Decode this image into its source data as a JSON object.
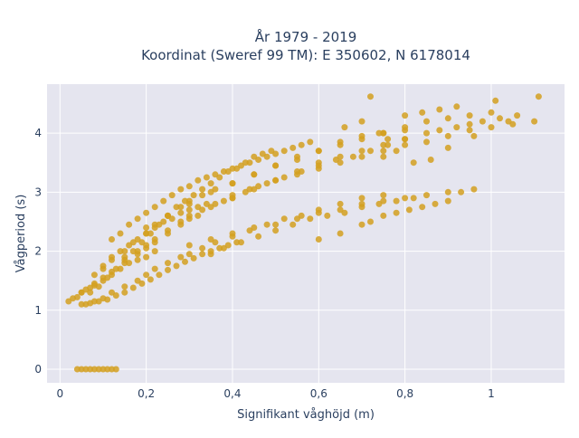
{
  "chart_data": {
    "type": "scatter",
    "title_line1": "År 1979 - 2019",
    "title_line2": "Koordinat (Sweref 99 TM): E 350602, N 6178014",
    "xlabel": "Signifikant våghöjd (m)",
    "ylabel": "Vågperiod (s)",
    "xlim": [
      -0.03,
      1.17
    ],
    "ylim": [
      -0.23,
      4.83
    ],
    "xticks": [
      {
        "value": 0,
        "label": "0"
      },
      {
        "value": 0.2,
        "label": "0,2"
      },
      {
        "value": 0.4,
        "label": "0,4"
      },
      {
        "value": 0.6,
        "label": "0,6"
      },
      {
        "value": 0.8,
        "label": "0,8"
      },
      {
        "value": 1,
        "label": "1"
      }
    ],
    "yticks": [
      {
        "value": 0,
        "label": "0"
      },
      {
        "value": 1,
        "label": "1"
      },
      {
        "value": 2,
        "label": "2"
      },
      {
        "value": 3,
        "label": "3"
      },
      {
        "value": 4,
        "label": "4"
      }
    ],
    "grid": true,
    "legend": "none",
    "marker_color": "#d4a020",
    "plot_background": "#e5e5ef",
    "series": [
      {
        "x": [
          0.04,
          0.05,
          0.06,
          0.07,
          0.08,
          0.09,
          0.1,
          0.11,
          0.12,
          0.13,
          0.02,
          0.03,
          0.04,
          0.05,
          0.06,
          0.07,
          0.08,
          0.1,
          0.12,
          0.14,
          0.16,
          0.18,
          0.2,
          0.22,
          0.05,
          0.08,
          0.1,
          0.12,
          0.15,
          0.18,
          0.2,
          0.22,
          0.25,
          0.28,
          0.3,
          0.32,
          0.35,
          0.38,
          0.4,
          0.43,
          0.46,
          0.5,
          0.55,
          0.6,
          0.65,
          0.7,
          0.75,
          0.8,
          0.85,
          0.9,
          0.95,
          1.0,
          1.05,
          1.1,
          0.1,
          0.12,
          0.15,
          0.17,
          0.2,
          0.22,
          0.25,
          0.28,
          0.3,
          0.33,
          0.36,
          0.4,
          0.45,
          0.5,
          0.55,
          0.6,
          0.65,
          0.7,
          0.75,
          0.8,
          0.06,
          0.08,
          0.1,
          0.12,
          0.15,
          0.18,
          0.2,
          0.22,
          0.25,
          0.28,
          0.3,
          0.33,
          0.36,
          0.4,
          0.44,
          0.48,
          0.52,
          0.56,
          0.6,
          0.65,
          0.7,
          0.75,
          0.15,
          0.18,
          0.2,
          0.22,
          0.25,
          0.28,
          0.3,
          0.33,
          0.36,
          0.4,
          0.44,
          0.48,
          0.52,
          0.56,
          0.6,
          0.64,
          0.68,
          0.72,
          0.76,
          0.8,
          0.05,
          0.07,
          0.09,
          0.11,
          0.13,
          0.15,
          0.17,
          0.19,
          0.21,
          0.23,
          0.25,
          0.27,
          0.29,
          0.31,
          0.33,
          0.35,
          0.37,
          0.39,
          0.41,
          0.12,
          0.14,
          0.16,
          0.18,
          0.2,
          0.22,
          0.24,
          0.26,
          0.28,
          0.3,
          0.32,
          0.34,
          0.36,
          0.38,
          0.4,
          0.42,
          0.44,
          0.46,
          0.48,
          0.5,
          0.52,
          0.54,
          0.56,
          0.58,
          0.08,
          0.1,
          0.12,
          0.14,
          0.16,
          0.18,
          0.2,
          0.22,
          0.24,
          0.26,
          0.28,
          0.3,
          0.32,
          0.34,
          0.2,
          0.25,
          0.3,
          0.35,
          0.4,
          0.45,
          0.5,
          0.55,
          0.6,
          0.65,
          0.7,
          0.75,
          0.8,
          0.85,
          0.9,
          0.95,
          1.0,
          0.3,
          0.35,
          0.4,
          0.45,
          0.5,
          0.55,
          0.6,
          0.65,
          0.7,
          0.75,
          0.8,
          0.85,
          0.9,
          0.35,
          0.38,
          0.42,
          0.46,
          0.5,
          0.54,
          0.58,
          0.62,
          0.66,
          0.7,
          0.74,
          0.78,
          0.82,
          0.4,
          0.45,
          0.5,
          0.55,
          0.6,
          0.65,
          0.7,
          0.75,
          0.8,
          0.85,
          0.88,
          0.92,
          0.95,
          0.98,
          1.02,
          1.04,
          1.06,
          0.6,
          0.65,
          0.7,
          0.72,
          0.75,
          0.78,
          0.81,
          0.84,
          0.87,
          0.9,
          0.93,
          0.96,
          0.07,
          0.09,
          0.11,
          0.13,
          0.15,
          0.17,
          0.19,
          0.21,
          0.23,
          0.25,
          0.27,
          0.29,
          0.31,
          0.33,
          0.35,
          0.37,
          0.39,
          0.41,
          0.43,
          0.45,
          0.47,
          0.49,
          0.66,
          0.7,
          0.74,
          0.76,
          0.8,
          0.84,
          0.88,
          0.92,
          1.11,
          0.75,
          0.82,
          0.86,
          0.9,
          0.96,
          1.01,
          0.72,
          0.78
        ],
        "y": [
          0,
          0,
          0,
          0,
          0,
          0,
          0,
          0,
          0,
          0,
          1.15,
          1.2,
          1.22,
          1.3,
          1.35,
          1.38,
          1.42,
          1.5,
          1.6,
          1.7,
          1.8,
          1.85,
          1.9,
          2.0,
          1.3,
          1.45,
          1.55,
          1.65,
          1.8,
          1.95,
          2.05,
          2.15,
          2.3,
          2.45,
          2.55,
          2.6,
          2.75,
          2.85,
          2.9,
          3.0,
          3.1,
          3.2,
          3.3,
          3.4,
          3.5,
          3.6,
          3.7,
          3.8,
          3.85,
          3.95,
          4.05,
          4.1,
          4.15,
          4.2,
          1.7,
          1.85,
          2.0,
          2.15,
          2.3,
          2.45,
          2.6,
          2.75,
          2.85,
          2.95,
          3.05,
          3.15,
          3.3,
          3.45,
          3.55,
          3.7,
          3.8,
          3.9,
          4.0,
          4.05,
          1.1,
          1.15,
          1.2,
          1.3,
          1.4,
          1.5,
          1.6,
          1.7,
          1.8,
          1.9,
          1.95,
          2.05,
          2.15,
          2.25,
          2.35,
          2.45,
          2.55,
          2.6,
          2.7,
          2.8,
          2.9,
          2.95,
          1.9,
          2.0,
          2.1,
          2.2,
          2.35,
          2.5,
          2.6,
          2.7,
          2.8,
          2.95,
          3.05,
          3.15,
          3.25,
          3.35,
          3.45,
          3.55,
          3.6,
          3.7,
          3.8,
          3.9,
          1.1,
          1.12,
          1.15,
          1.18,
          1.25,
          1.3,
          1.38,
          1.45,
          1.52,
          1.6,
          1.68,
          1.75,
          1.82,
          1.88,
          1.95,
          2.0,
          2.05,
          2.1,
          2.15,
          2.2,
          2.3,
          2.45,
          2.55,
          2.65,
          2.75,
          2.85,
          2.95,
          3.05,
          3.1,
          3.2,
          3.25,
          3.3,
          3.35,
          3.4,
          3.45,
          3.5,
          3.55,
          3.6,
          3.65,
          3.7,
          3.75,
          3.8,
          3.85,
          1.6,
          1.75,
          1.9,
          2.0,
          2.1,
          2.2,
          2.3,
          2.4,
          2.5,
          2.55,
          2.65,
          2.7,
          2.75,
          2.8,
          2.4,
          2.6,
          2.8,
          3.0,
          3.15,
          3.3,
          3.45,
          3.6,
          3.7,
          3.85,
          3.95,
          4.0,
          4.1,
          4.2,
          4.25,
          4.3,
          4.35,
          2.1,
          2.2,
          2.3,
          2.4,
          2.45,
          2.55,
          2.65,
          2.7,
          2.8,
          2.85,
          2.9,
          2.95,
          3.0,
          1.95,
          2.05,
          2.15,
          2.25,
          2.35,
          2.45,
          2.55,
          2.6,
          2.65,
          2.75,
          2.8,
          2.85,
          2.9,
          2.9,
          3.05,
          3.2,
          3.35,
          3.5,
          3.6,
          3.7,
          3.8,
          3.9,
          4.0,
          4.05,
          4.1,
          4.15,
          4.2,
          4.25,
          4.2,
          4.3,
          2.2,
          2.3,
          2.45,
          2.5,
          2.6,
          2.65,
          2.7,
          2.75,
          2.8,
          2.85,
          3.0,
          3.05,
          1.3,
          1.4,
          1.55,
          1.7,
          1.85,
          2.0,
          2.15,
          2.3,
          2.45,
          2.6,
          2.75,
          2.85,
          2.95,
          3.05,
          3.15,
          3.25,
          3.35,
          3.4,
          3.5,
          3.6,
          3.65,
          3.7,
          4.1,
          4.2,
          4.0,
          3.9,
          4.3,
          4.35,
          4.4,
          4.45,
          4.62,
          3.6,
          3.5,
          3.55,
          3.75,
          3.95,
          4.55,
          4.62,
          3.7
        ]
      }
    ]
  }
}
